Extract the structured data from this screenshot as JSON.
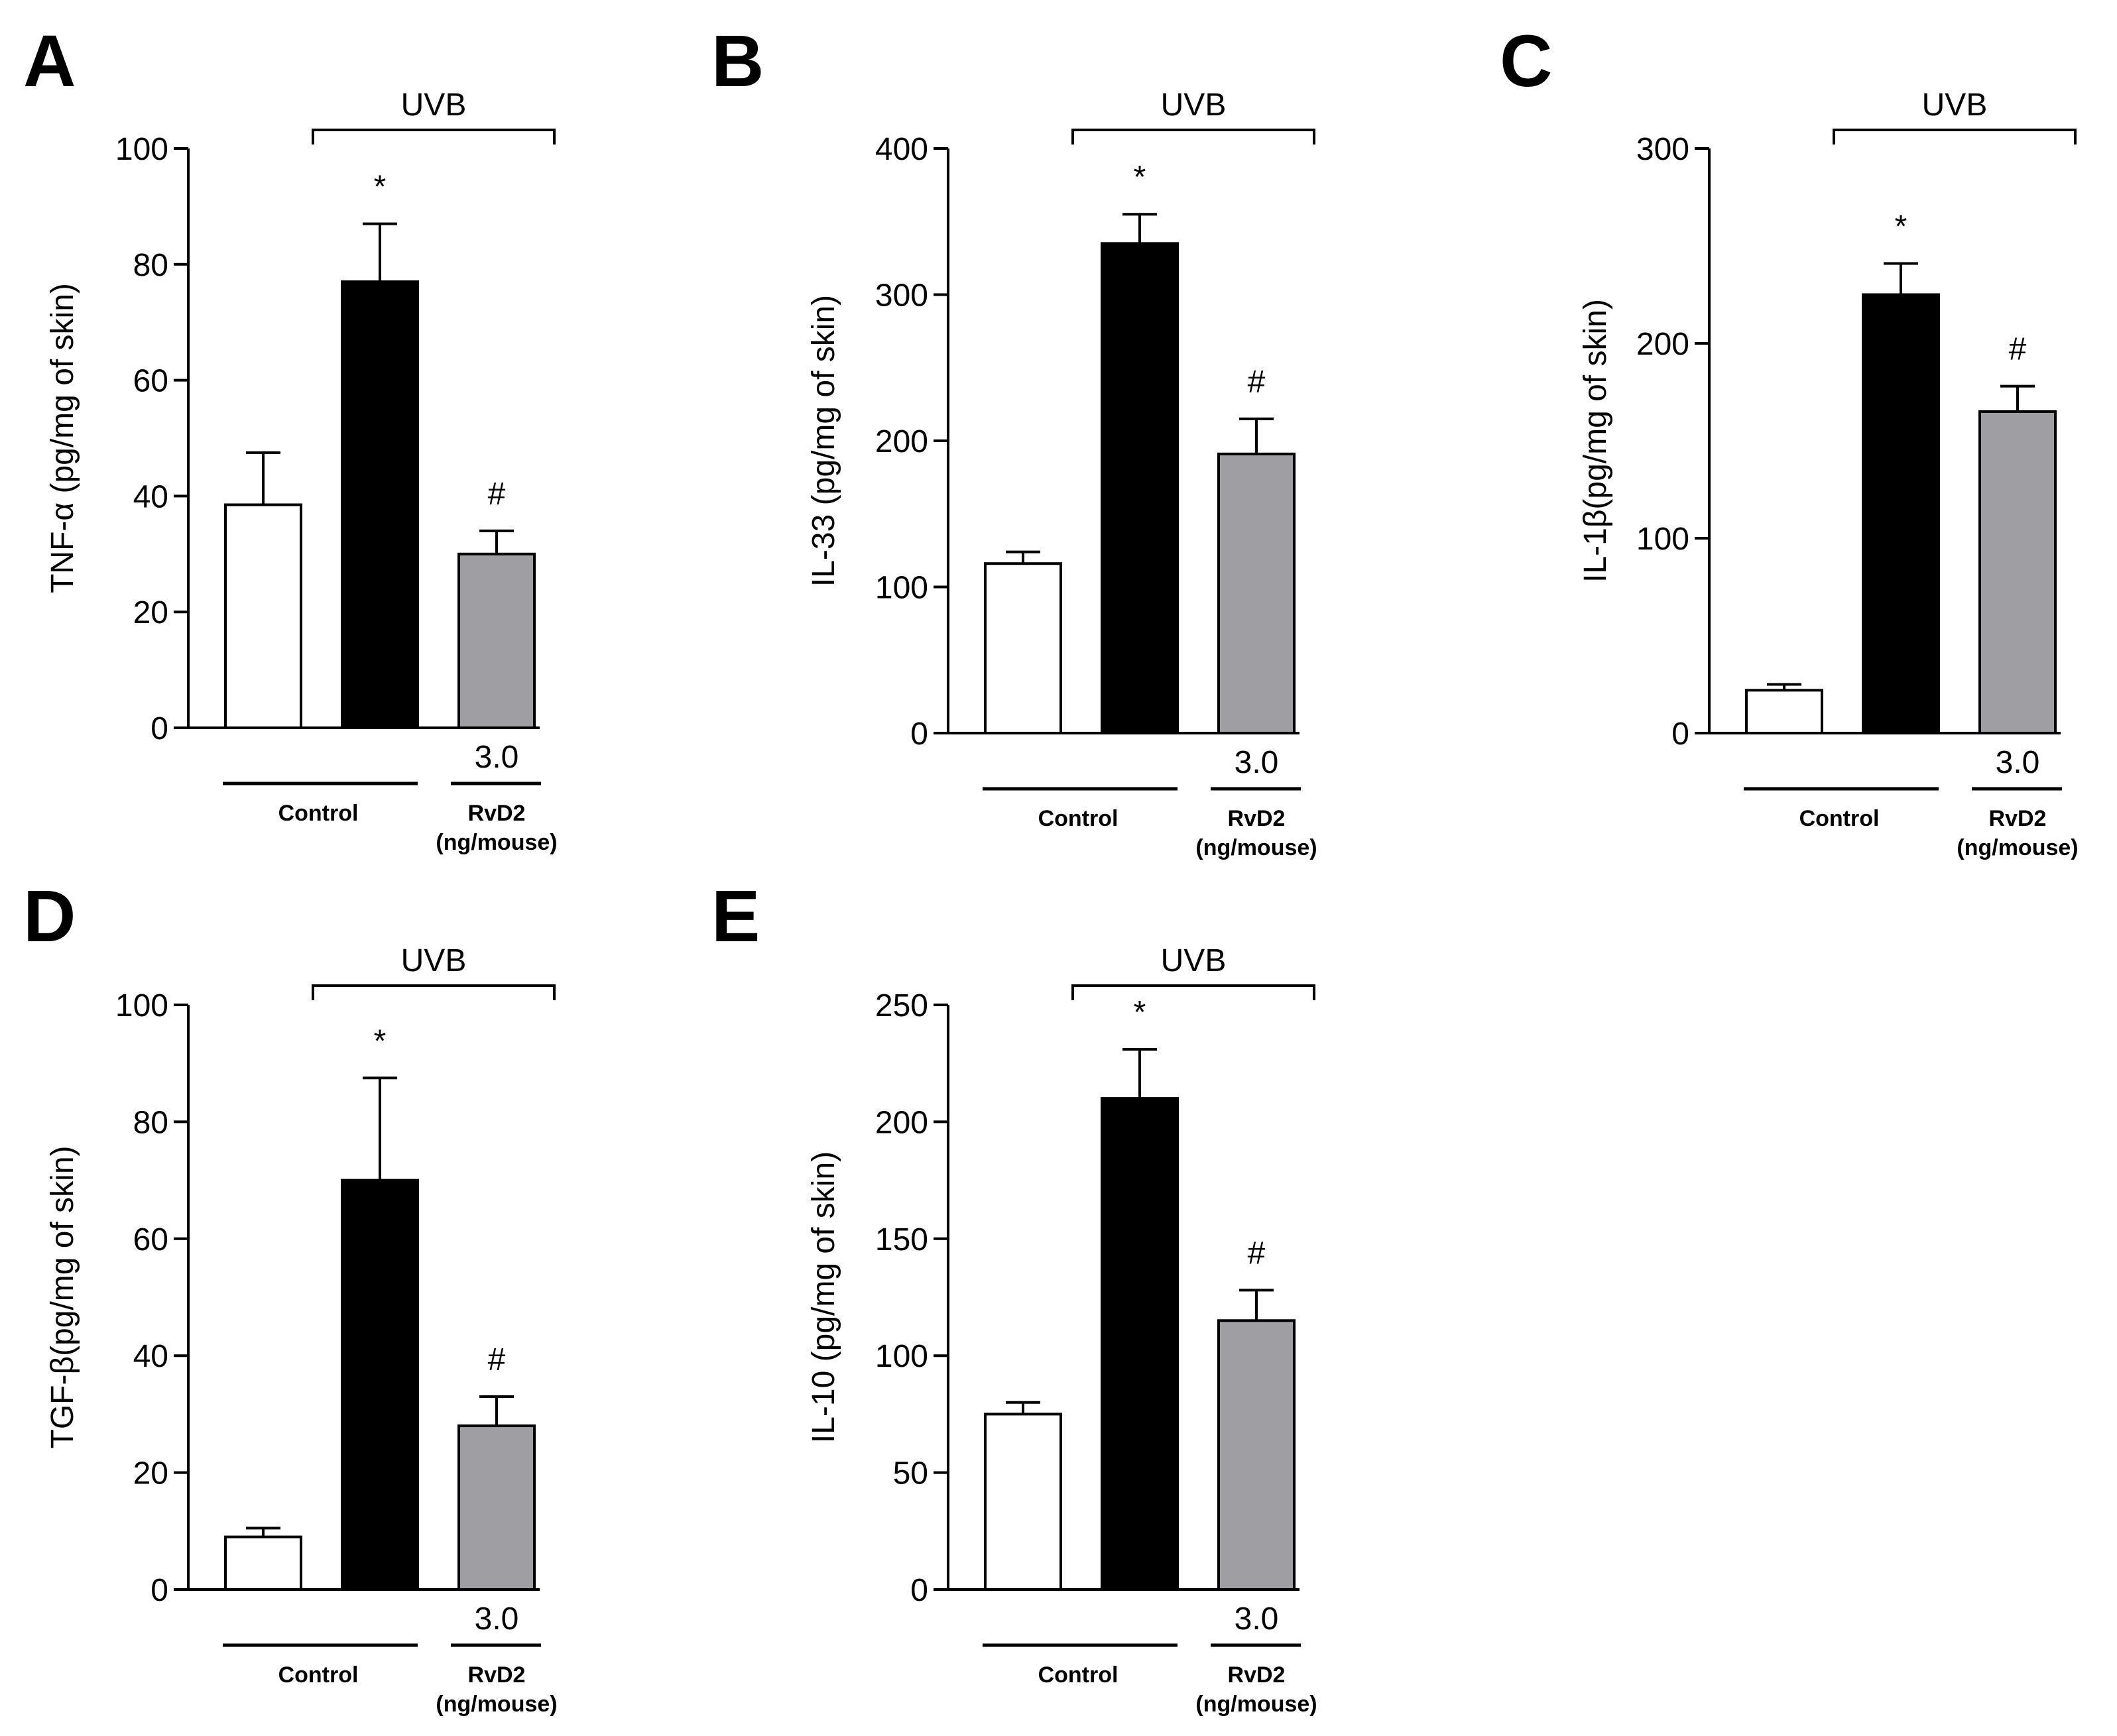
{
  "chart_data": [
    {
      "type": "bar",
      "panel": "A",
      "ylabel": "TNF-α (pg/mg of skin)",
      "ylim": [
        0,
        100
      ],
      "yticks": [
        "0",
        "20",
        "40",
        "60",
        "80",
        "100"
      ],
      "bracket_label": "UVB",
      "dose_label": "3.0",
      "group_labels": [
        "Control",
        "RvD2",
        "(ng/mouse)"
      ],
      "bars": [
        {
          "value": 38.5,
          "error": 9,
          "color": "#ffffff",
          "mark": ""
        },
        {
          "value": 77,
          "error": 10,
          "color": "#000000",
          "mark": "*"
        },
        {
          "value": 30,
          "error": 4,
          "color": "#9e9ea3",
          "mark": "#"
        }
      ]
    },
    {
      "type": "bar",
      "panel": "B",
      "ylabel": "IL-33 (pg/mg of skin)",
      "ylim": [
        0,
        400
      ],
      "yticks": [
        "0",
        "100",
        "200",
        "300",
        "400"
      ],
      "bracket_label": "UVB",
      "dose_label": "3.0",
      "group_labels": [
        "Control",
        "RvD2",
        "(ng/mouse)"
      ],
      "bars": [
        {
          "value": 116,
          "error": 8,
          "color": "#ffffff",
          "mark": ""
        },
        {
          "value": 335,
          "error": 20,
          "color": "#000000",
          "mark": "*"
        },
        {
          "value": 191,
          "error": 24,
          "color": "#9e9ea3",
          "mark": "#"
        }
      ]
    },
    {
      "type": "bar",
      "panel": "C",
      "ylabel": "IL-1β(pg/mg of skin)",
      "ylim": [
        0,
        300
      ],
      "yticks": [
        "0",
        "100",
        "200",
        "300"
      ],
      "bracket_label": "UVB",
      "dose_label": "3.0",
      "group_labels": [
        "Control",
        "RvD2",
        "(ng/mouse)"
      ],
      "bars": [
        {
          "value": 22,
          "error": 3,
          "color": "#ffffff",
          "mark": ""
        },
        {
          "value": 225,
          "error": 16,
          "color": "#000000",
          "mark": "*"
        },
        {
          "value": 165,
          "error": 13,
          "color": "#9e9ea3",
          "mark": "#"
        }
      ]
    },
    {
      "type": "bar",
      "panel": "D",
      "ylabel": "TGF-β(pg/mg of skin)",
      "ylim": [
        0,
        100
      ],
      "yticks": [
        "0",
        "20",
        "40",
        "60",
        "80",
        "100"
      ],
      "bracket_label": "UVB",
      "dose_label": "3.0",
      "group_labels": [
        "Control",
        "RvD2",
        "(ng/mouse)"
      ],
      "bars": [
        {
          "value": 9,
          "error": 1.5,
          "color": "#ffffff",
          "mark": ""
        },
        {
          "value": 70,
          "error": 17.5,
          "color": "#000000",
          "mark": "*"
        },
        {
          "value": 28,
          "error": 5,
          "color": "#9e9ea3",
          "mark": "#"
        }
      ]
    },
    {
      "type": "bar",
      "panel": "E",
      "ylabel": "IL-10 (pg/mg of skin)",
      "ylim": [
        0,
        250
      ],
      "yticks": [
        "0",
        "50",
        "100",
        "150",
        "200",
        "250"
      ],
      "bracket_label": "UVB",
      "dose_label": "3.0",
      "group_labels": [
        "Control",
        "RvD2",
        "(ng/mouse)"
      ],
      "bars": [
        {
          "value": 75,
          "error": 5,
          "color": "#ffffff",
          "mark": ""
        },
        {
          "value": 210,
          "error": 21,
          "color": "#000000",
          "mark": "*"
        },
        {
          "value": 115,
          "error": 13,
          "color": "#9e9ea3",
          "mark": "#"
        }
      ]
    }
  ]
}
